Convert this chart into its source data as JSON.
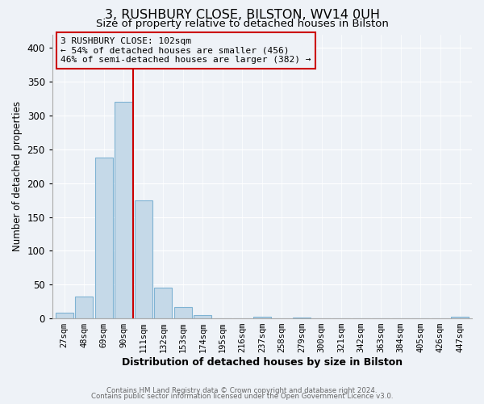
{
  "title": "3, RUSHBURY CLOSE, BILSTON, WV14 0UH",
  "subtitle": "Size of property relative to detached houses in Bilston",
  "xlabel": "Distribution of detached houses by size in Bilston",
  "ylabel": "Number of detached properties",
  "bin_labels": [
    "27sqm",
    "48sqm",
    "69sqm",
    "90sqm",
    "111sqm",
    "132sqm",
    "153sqm",
    "174sqm",
    "195sqm",
    "216sqm",
    "237sqm",
    "258sqm",
    "279sqm",
    "300sqm",
    "321sqm",
    "342sqm",
    "363sqm",
    "384sqm",
    "405sqm",
    "426sqm",
    "447sqm"
  ],
  "bar_values": [
    8,
    32,
    238,
    320,
    175,
    45,
    17,
    5,
    0,
    0,
    3,
    0,
    1,
    0,
    0,
    0,
    0,
    0,
    0,
    0,
    2
  ],
  "bar_color": "#c5d9e8",
  "bar_edge_color": "#7fb3d3",
  "vline_color": "#cc0000",
  "annotation_text": "3 RUSHBURY CLOSE: 102sqm\n← 54% of detached houses are smaller (456)\n46% of semi-detached houses are larger (382) →",
  "annotation_box_edge": "#cc0000",
  "ylim": [
    0,
    420
  ],
  "yticks": [
    0,
    50,
    100,
    150,
    200,
    250,
    300,
    350,
    400
  ],
  "footer1": "Contains HM Land Registry data © Crown copyright and database right 2024.",
  "footer2": "Contains public sector information licensed under the Open Government Licence v3.0.",
  "bg_color": "#eef2f7",
  "grid_color": "#ffffff",
  "title_fontsize": 11.5,
  "subtitle_fontsize": 9.5,
  "annotation_fontsize": 8,
  "xlabel_fontsize": 9,
  "ylabel_fontsize": 8.5
}
